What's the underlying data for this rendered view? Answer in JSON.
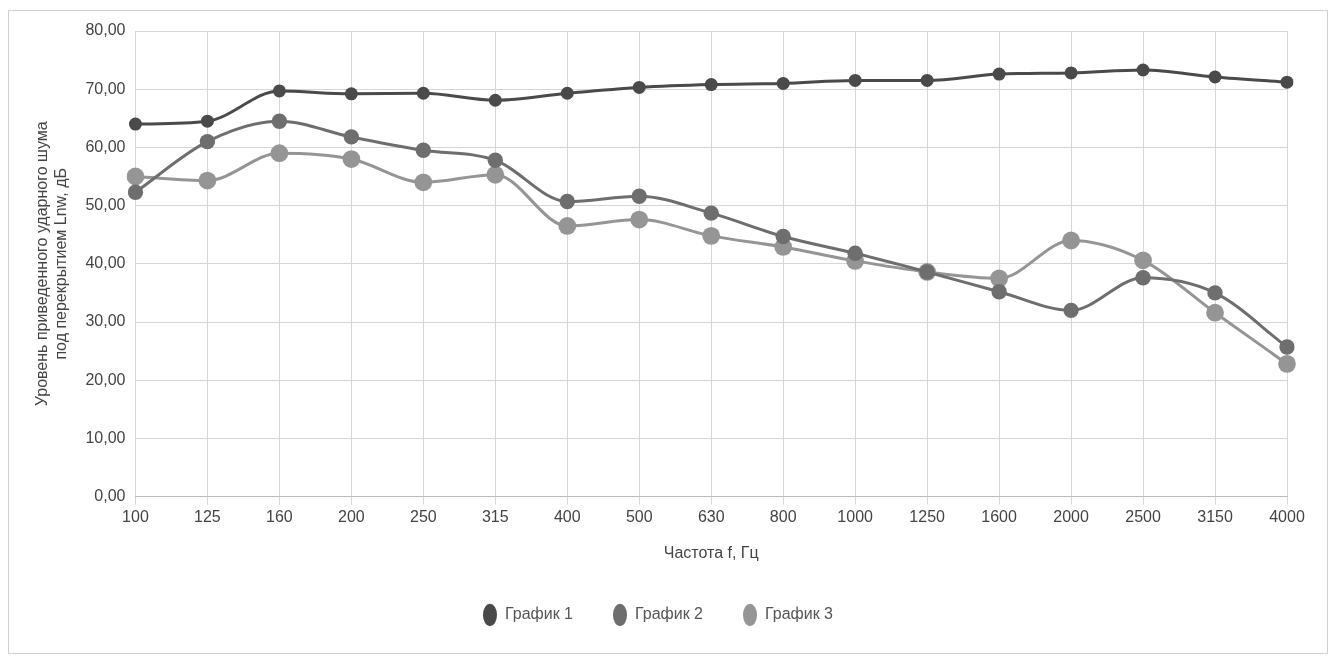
{
  "chart_data": {
    "type": "line",
    "xlabel": "Частота f, Гц",
    "ylabel": "Уровень приведенного ударного шума\nпод перекрытием Lnw, дБ",
    "categories": [
      "100",
      "125",
      "160",
      "200",
      "250",
      "315",
      "400",
      "500",
      "630",
      "800",
      "1000",
      "1250",
      "1600",
      "2000",
      "2500",
      "3150",
      "4000"
    ],
    "series": [
      {
        "name": "График 1",
        "color": "#4a4a4a",
        "values": [
          64,
          64.5,
          69.7,
          69.2,
          69.3,
          68.1,
          69.3,
          70.3,
          70.8,
          71,
          71.5,
          71.5,
          72.6,
          72.8,
          73.3,
          72.1,
          71.2
        ]
      },
      {
        "name": "График 2",
        "color": "#6e6e6e",
        "values": [
          52.3,
          61,
          64.5,
          61.8,
          59.5,
          57.8,
          50.7,
          51.6,
          48.7,
          44.7,
          41.8,
          38.6,
          35.2,
          32,
          37.6,
          35,
          25.7
        ]
      },
      {
        "name": "График 3",
        "color": "#959595",
        "values": [
          55,
          54.3,
          59,
          58,
          54,
          55.3,
          46.5,
          47.6,
          44.8,
          42.9,
          40.5,
          38.6,
          37.5,
          44,
          40.6,
          31.6,
          22.8
        ]
      }
    ],
    "ylim": [
      0,
      80
    ],
    "yticks": [
      {
        "value": 0,
        "label": "0,00"
      },
      {
        "value": 10,
        "label": "10,00"
      },
      {
        "value": 20,
        "label": "20,00"
      },
      {
        "value": 30,
        "label": "30,00"
      },
      {
        "value": 40,
        "label": "40,00"
      },
      {
        "value": 50,
        "label": "50,00"
      },
      {
        "value": 60,
        "label": "60,00"
      },
      {
        "value": 70,
        "label": "70,00"
      },
      {
        "value": 80,
        "label": "80,00"
      }
    ],
    "grid": true,
    "legend": "bottom",
    "marker": "circle",
    "line_style": "solid"
  }
}
